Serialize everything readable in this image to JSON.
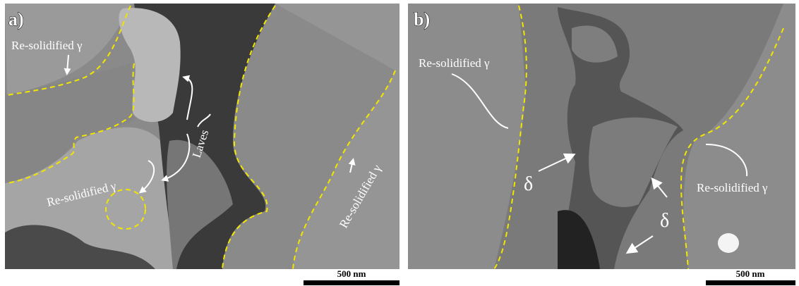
{
  "panels": [
    {
      "label": "a)",
      "annotations": [
        "Re-solidified γ",
        "Re-solidified γ",
        "Laves",
        "Re-solidified γ"
      ],
      "scale_bar": "500 nm"
    },
    {
      "label": "b)",
      "annotations": [
        "Re-solidified γ",
        "Re-solidified γ",
        "δ",
        "δ"
      ],
      "scale_bar": "500 nm"
    }
  ]
}
